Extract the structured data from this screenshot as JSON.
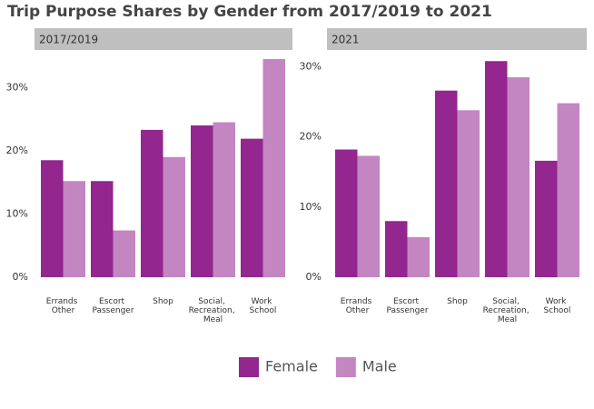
{
  "title": "Trip Purpose Shares by Gender from 2017/2019 to 2021",
  "legend": {
    "position": "bottom"
  },
  "chart_data": [
    {
      "type": "bar",
      "subtitle": "2017/2019",
      "categories": [
        "Errands Other",
        "Escort Passenger",
        "Shop",
        "Social, Recreation, Meal",
        "Work School"
      ],
      "series": [
        {
          "name": "Female",
          "color": "#93268f",
          "values": [
            18.5,
            15.2,
            23.3,
            24.0,
            21.9
          ]
        },
        {
          "name": "Male",
          "color": "#c386c2",
          "values": [
            15.2,
            7.4,
            19.0,
            24.5,
            34.5
          ]
        }
      ],
      "ylim": [
        0,
        35.5
      ],
      "yticks": [
        {
          "value": 0,
          "label": "0%"
        },
        {
          "value": 10,
          "label": "10%"
        },
        {
          "value": 20,
          "label": "20%"
        },
        {
          "value": 30,
          "label": "30%"
        }
      ]
    },
    {
      "type": "bar",
      "subtitle": "2021",
      "categories": [
        "Errands Other",
        "Escort Passenger",
        "Shop",
        "Social, Recreation, Meal",
        "Work School"
      ],
      "series": [
        {
          "color": "#93268f",
          "values": [
            18.2,
            8.0,
            26.6,
            30.8,
            16.6
          ]
        },
        {
          "color": "#c386c2",
          "values": [
            17.3,
            5.7,
            23.8,
            28.5,
            24.8
          ]
        }
      ],
      "ylim": [
        0,
        32
      ],
      "yticks": [
        {
          "value": 0,
          "label": "0%"
        },
        {
          "value": 10,
          "label": "10%"
        },
        {
          "value": 20,
          "label": "20%"
        },
        {
          "value": 30,
          "label": "30%"
        }
      ]
    }
  ]
}
